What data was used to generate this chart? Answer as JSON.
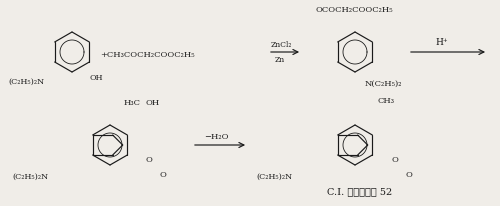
{
  "bg_color": "#f0ede8",
  "text_color": "#1a1a1a",
  "title": "C.I. 荧光增白剂 52",
  "r1_mol1_n": "(C₂H₅)₂N",
  "r1_mol1_oh": "OH",
  "r1_plus": "+CH₃COCH₂COOC₂H₅",
  "r1_a1_top": "ZnCl₂",
  "r1_a1_bot": "Zn",
  "r1_mol2_top": "OCOCH₂COOC₂H₅",
  "r1_mol2_bot": "N(C₂H₅)₂",
  "r1_a2": "H⁺",
  "r2_mol3_tleft": "H₃C",
  "r2_mol3_tright": "OH",
  "r2_mol3_n": "(C₂H₅)₂N",
  "r2_mol3_o1": "O",
  "r2_mol3_o2": "O",
  "r2_arrow": "−H₂O",
  "r2_mol4_top": "CH₃",
  "r2_mol4_n": "(C₂H₅)₂N",
  "r2_mol4_o1": "O",
  "r2_mol4_o2": "O"
}
